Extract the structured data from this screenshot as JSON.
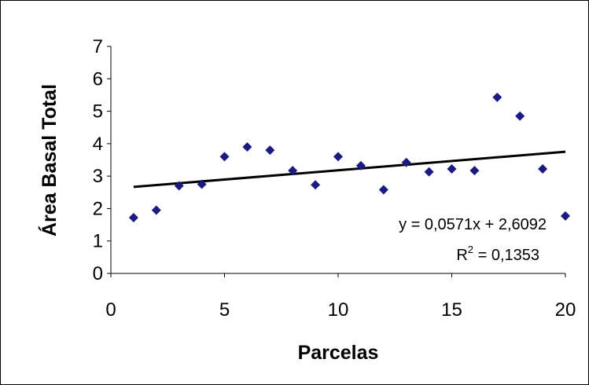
{
  "chart_data": {
    "type": "scatter",
    "xlabel": "Parcelas",
    "ylabel": "Área Basal Total",
    "xlim": [
      0,
      20
    ],
    "ylim": [
      0,
      7
    ],
    "xticks": [
      "0",
      "5",
      "10",
      "15",
      "20"
    ],
    "yticks": [
      "0",
      "1",
      "2",
      "3",
      "4",
      "5",
      "6",
      "7"
    ],
    "grid": false,
    "marker_color": "#1a1a80",
    "series": [
      {
        "x": [
          1,
          2,
          3,
          4,
          5,
          6,
          7,
          8,
          9,
          10,
          11,
          12,
          13,
          14,
          15,
          16,
          17,
          18,
          19,
          20
        ],
        "y": [
          1.72,
          1.95,
          2.7,
          2.75,
          3.6,
          3.9,
          3.8,
          3.17,
          2.73,
          3.6,
          3.32,
          2.58,
          3.42,
          3.13,
          3.22,
          3.17,
          5.43,
          4.85,
          3.22,
          1.77
        ]
      }
    ],
    "trendline": {
      "slope": 0.0571,
      "intercept": 2.6092,
      "x_range": [
        1,
        20
      ],
      "equation_label": "y = 0,0571x + 2,6092",
      "r2_prefix": "R",
      "r2_sup": "2",
      "r2_value": " = 0,1353"
    }
  }
}
